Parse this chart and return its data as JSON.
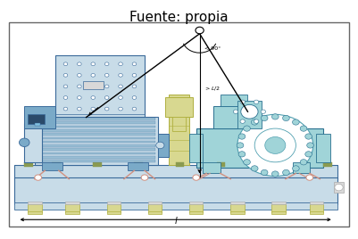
{
  "title": "Fuente: propia",
  "title_fontsize": 11,
  "bg_color": "#ffffff",
  "border_color": "#666666",
  "fig_width": 4.01,
  "fig_height": 2.68,
  "dpi": 100,
  "blue_light": "#c8dce8",
  "blue_med": "#7aaac8",
  "blue_dark": "#3a6a9a",
  "teal_light": "#a0d4d8",
  "teal_med": "#50a0b0",
  "teal_dark": "#2a7090",
  "salmon": "#d09080",
  "yellow_light": "#d8d890",
  "yellow_dark": "#b0b040",
  "gray_light": "#d8d8d8",
  "gray_med": "#aaaaaa",
  "black": "#000000",
  "green_small": "#8a9a50",
  "white": "#ffffff",
  "beige": "#f0f0e0"
}
